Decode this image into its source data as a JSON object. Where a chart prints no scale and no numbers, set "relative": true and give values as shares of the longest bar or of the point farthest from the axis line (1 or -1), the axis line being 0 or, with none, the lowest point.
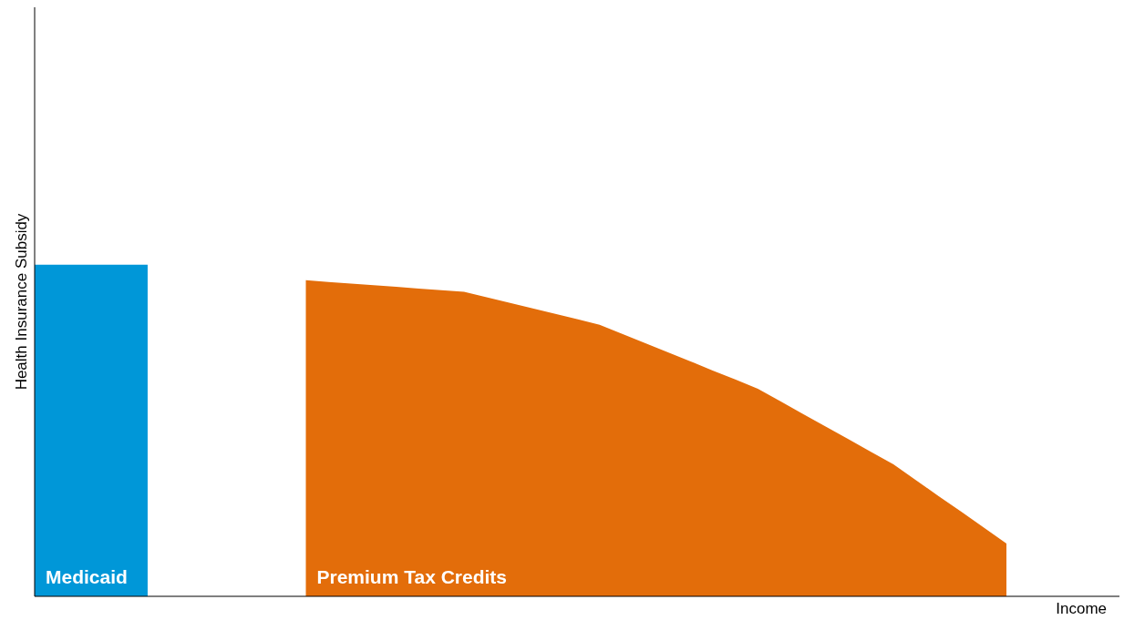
{
  "chart_data": {
    "type": "area",
    "relative": true,
    "xlabel": "Income",
    "ylabel": "Health Insurance Subsidy",
    "legend": false,
    "categories": [
      null,
      null,
      null,
      null,
      null,
      null,
      null,
      null,
      null,
      null,
      null,
      null,
      null,
      null,
      null,
      null,
      null,
      null,
      null,
      null,
      null,
      null,
      null,
      null,
      null,
      null,
      null,
      null,
      null,
      null,
      null,
      null,
      null,
      null,
      null,
      null,
      null,
      null,
      null,
      null,
      null,
      null,
      null,
      null,
      null,
      null,
      null,
      null,
      null
    ],
    "series": [
      {
        "name": "Medicaid",
        "color": "#0097d8",
        "values": [
          1,
          1,
          1,
          1,
          1,
          1,
          null,
          null,
          null,
          null,
          null,
          null,
          null,
          null,
          null,
          null,
          null,
          null,
          null,
          null,
          null,
          null,
          null,
          null,
          null,
          null,
          null,
          null,
          null,
          null,
          null,
          null,
          null,
          null,
          null,
          null,
          null,
          null,
          null,
          null,
          null,
          null,
          null,
          null,
          null,
          null,
          null,
          null,
          null
        ]
      },
      {
        "name": "Premium Tax Credits",
        "color": "#e36d0a",
        "values": [
          null,
          null,
          null,
          null,
          null,
          null,
          null,
          null,
          null,
          null,
          null,
          null,
          0.953,
          0.948,
          0.943,
          0.938,
          0.933,
          0.928,
          0.923,
          0.918,
          0.902,
          0.885,
          0.869,
          0.852,
          0.836,
          0.819,
          0.791,
          0.764,
          0.736,
          0.709,
          0.681,
          0.654,
          0.626,
          0.588,
          0.55,
          0.512,
          0.474,
          0.436,
          0.398,
          0.35,
          0.302,
          0.255,
          0.207,
          0.159,
          null,
          null,
          null,
          null,
          null
        ]
      }
    ]
  }
}
